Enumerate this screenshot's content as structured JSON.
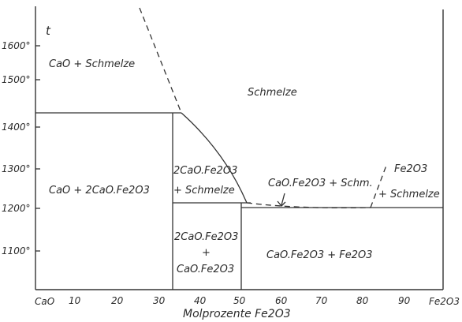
{
  "diagram": {
    "y_axis_symbol": "t",
    "x_axis_title": "Molprozente Fe2O3",
    "y_ticks": [
      "1600°",
      "1500°",
      "1400°",
      "1300°",
      "1200°",
      "1100°"
    ],
    "x_ticks": [
      "CaO",
      "10",
      "20",
      "30",
      "40",
      "50",
      "60",
      "70",
      "80",
      "90",
      "Fe2O3"
    ],
    "regions": {
      "cao_melt": "CaO + Schmelze",
      "melt": "Schmelze",
      "cao_2cao_fe2o3": "CaO + 2CaO.Fe2O3",
      "dicalcium_ferrite_melt_line1": "2CaO.Fe2O3",
      "dicalcium_ferrite_melt_line2": "+ Schmelze",
      "monocalcium_ferrite_melt": "CaO.Fe2O3 + Schm.",
      "fe2o3_melt_line1": "Fe2O3",
      "fe2o3_melt_line2": "+ Schmelze",
      "lower_mid_line1": "2CaO.Fe2O3",
      "lower_mid_plus": "+",
      "lower_mid_line2": "CaO.Fe2O3",
      "lower_right": "CaO.Fe2O3 + Fe2O3"
    }
  }
}
